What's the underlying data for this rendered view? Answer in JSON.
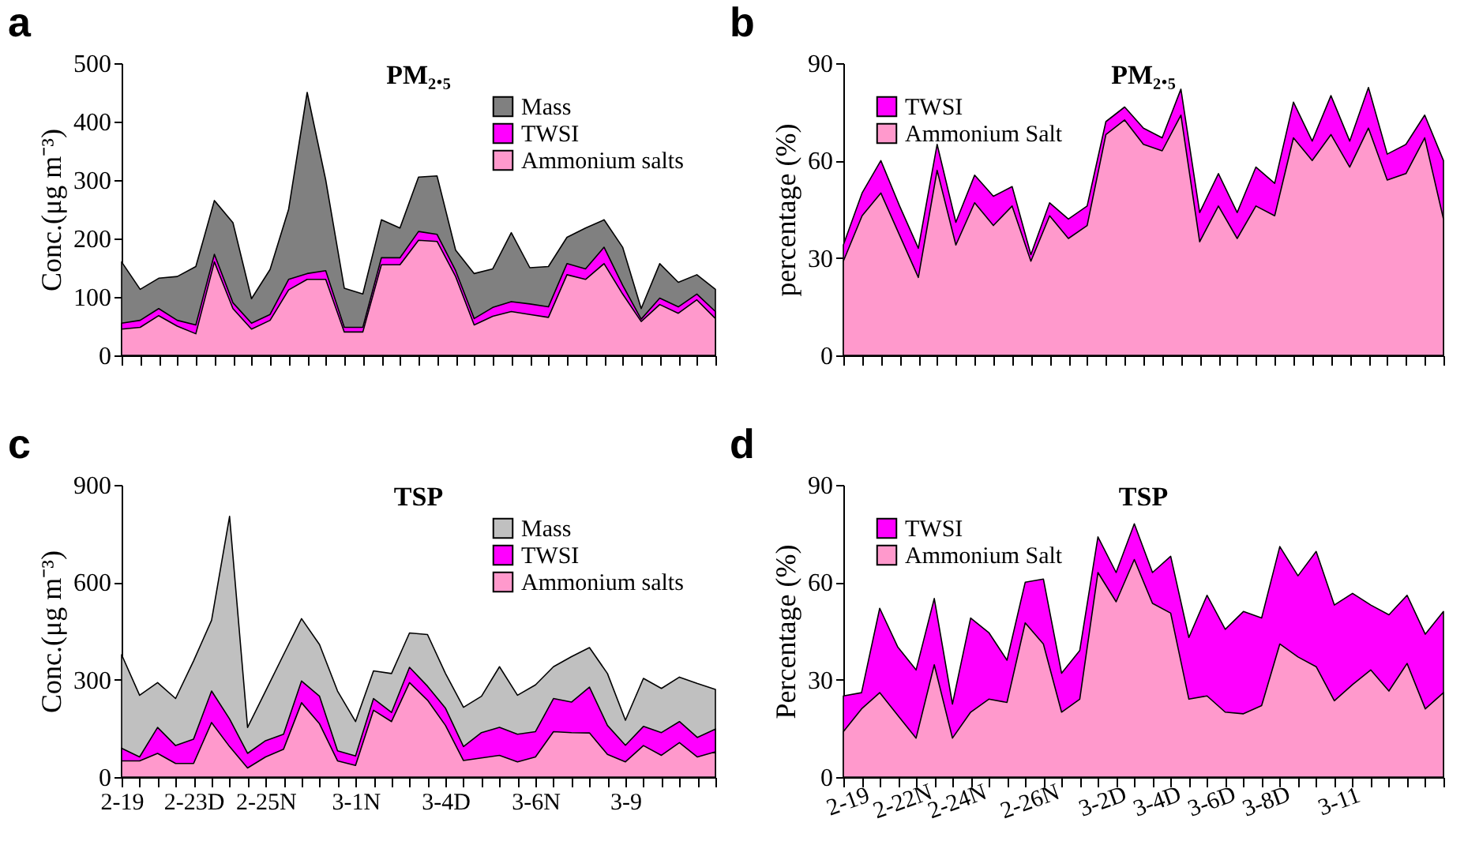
{
  "chart_data": [
    {
      "type": "area",
      "annotations": [
        "a"
      ],
      "title": "PM₂.₅",
      "ylabel": "Conc.(μg m⁻³)",
      "legend": "top right",
      "tick_labels": "y",
      "categories": [
        null,
        null,
        null,
        null,
        null,
        null,
        null,
        null,
        null,
        null,
        null,
        null,
        null,
        null,
        null,
        null,
        null,
        null,
        null,
        null,
        null,
        null,
        null,
        null,
        null,
        null,
        null,
        null,
        null,
        null,
        null,
        null,
        null
      ],
      "ylim": [
        0,
        500
      ],
      "yticks": [
        0,
        100,
        200,
        300,
        400,
        500
      ],
      "series": [
        {
          "name": "Mass",
          "color": "#808080",
          "values": [
            160,
            113,
            132,
            135,
            152,
            265,
            227,
            97,
            147,
            250,
            450,
            300,
            115,
            105,
            232,
            218,
            305,
            307,
            180,
            140,
            148,
            210,
            150,
            152,
            202,
            218,
            232,
            185,
            80,
            157,
            125,
            138,
            113
          ]
        },
        {
          "name": "TWSI",
          "color": "#ff00ff",
          "values": [
            55,
            60,
            80,
            60,
            52,
            173,
            90,
            55,
            70,
            130,
            140,
            145,
            48,
            48,
            167,
            167,
            212,
            207,
            145,
            63,
            82,
            92,
            88,
            83,
            157,
            148,
            185,
            120,
            62,
            98,
            83,
            105,
            75
          ]
        },
        {
          "name": "Ammonium salts",
          "color": "#ff99cc",
          "values": [
            45,
            48,
            68,
            50,
            37,
            160,
            80,
            45,
            60,
            112,
            130,
            130,
            40,
            40,
            155,
            155,
            197,
            195,
            135,
            52,
            67,
            75,
            70,
            65,
            138,
            130,
            157,
            105,
            58,
            87,
            72,
            95,
            63
          ]
        }
      ]
    },
    {
      "type": "area",
      "annotations": [
        "b"
      ],
      "title": "PM₂.₅",
      "ylabel": "percentage (%)",
      "legend": "top left",
      "tick_labels": "y",
      "categories": [
        null,
        null,
        null,
        null,
        null,
        null,
        null,
        null,
        null,
        null,
        null,
        null,
        null,
        null,
        null,
        null,
        null,
        null,
        null,
        null,
        null,
        null,
        null,
        null,
        null,
        null,
        null,
        null,
        null,
        null,
        null,
        null,
        null
      ],
      "ylim": [
        0,
        90
      ],
      "yticks": [
        0,
        30,
        60,
        90
      ],
      "series": [
        {
          "name": "TWSI",
          "color": "#ff00ff",
          "values": [
            34,
            50,
            60,
            46,
            33,
            65,
            41,
            55.5,
            49,
            52,
            31,
            47,
            42,
            46,
            72,
            76.5,
            70,
            67,
            82,
            44,
            56,
            44,
            58,
            53,
            78,
            66,
            80,
            66,
            82.5,
            62,
            65,
            74,
            60
          ]
        },
        {
          "name": "Ammonium Salt",
          "color": "#ff99cc",
          "values": [
            29,
            43,
            50,
            37,
            24,
            57,
            34,
            47,
            40,
            46,
            29,
            43,
            36,
            40,
            68,
            72.5,
            65,
            63,
            74,
            35,
            46,
            36,
            46,
            43,
            67,
            60,
            68,
            58,
            70,
            54,
            56,
            67,
            42
          ]
        }
      ]
    },
    {
      "type": "area",
      "annotations": [
        "c"
      ],
      "title": "TSP",
      "ylabel": "Conc.(μg m⁻³)",
      "legend": "top right",
      "categories": [
        "2-19",
        null,
        null,
        null,
        "2-23D",
        null,
        null,
        null,
        "2-25N",
        null,
        null,
        null,
        null,
        "3-1N",
        null,
        null,
        null,
        null,
        "3-4D",
        null,
        null,
        null,
        null,
        "3-6N",
        null,
        null,
        null,
        null,
        "3-9",
        null,
        null,
        null,
        null,
        null
      ],
      "ylim": [
        0,
        900
      ],
      "yticks": [
        0,
        300,
        600,
        900
      ],
      "series": [
        {
          "name": "Mass",
          "color": "#c0c0c0",
          "values": [
            377,
            252,
            291,
            242,
            358,
            483,
            803,
            153,
            265,
            377,
            488,
            408,
            265,
            171,
            327,
            319,
            444,
            439,
            319,
            215,
            249,
            340,
            252,
            284,
            340,
            371,
            399,
            319,
            175,
            304,
            273,
            308,
            288,
            270
          ]
        },
        {
          "name": "TWSI",
          "color": "#ff00ff",
          "values": [
            89,
            62,
            153,
            97,
            117,
            265,
            179,
            73,
            112,
            132,
            296,
            249,
            81,
            65,
            242,
            199,
            338,
            280,
            212,
            94,
            137,
            153,
            132,
            140,
            242,
            231,
            277,
            159,
            98,
            156,
            137,
            171,
            122,
            148
          ]
        },
        {
          "name": "Ammonium salts",
          "color": "#ff99cc",
          "values": [
            50,
            50,
            73,
            42,
            42,
            168,
            94,
            28,
            62,
            86,
            229,
            164,
            50,
            36,
            206,
            171,
            291,
            237,
            159,
            51,
            59,
            67,
            47,
            62,
            140,
            137,
            136,
            70,
            47,
            97,
            67,
            106,
            62,
            78
          ]
        }
      ]
    },
    {
      "type": "area",
      "annotations": [
        "d"
      ],
      "title": "TSP",
      "ylabel": "Percentage (%)",
      "legend": "top left",
      "categories": [
        "2-19",
        null,
        null,
        "2-22N",
        null,
        null,
        "2-24N",
        null,
        null,
        null,
        "2-26N",
        null,
        null,
        null,
        "3-2D",
        null,
        null,
        "3-4D",
        null,
        null,
        "3-6D",
        null,
        null,
        "3-8D",
        null,
        null,
        null,
        "3-11",
        null,
        null,
        null,
        null,
        null,
        null
      ],
      "ylim": [
        0,
        90
      ],
      "yticks": [
        0,
        30,
        60,
        90
      ],
      "series": [
        {
          "name": "TWSI",
          "color": "#ff00ff",
          "values": [
            25,
            26,
            52,
            40,
            33,
            55,
            22.5,
            49,
            44.5,
            36,
            60,
            61,
            32,
            39,
            74,
            63,
            78,
            63,
            68,
            43,
            56,
            45.5,
            51,
            49,
            71,
            62,
            69.5,
            53,
            56.6,
            53,
            50,
            56,
            44,
            51
          ]
        },
        {
          "name": "Ammonium Salt",
          "color": "#ff99cc",
          "values": [
            14,
            21,
            26,
            19,
            12,
            34.6,
            12,
            20,
            24,
            23,
            47.5,
            41,
            20,
            24,
            63,
            54,
            67,
            53.5,
            50.5,
            24,
            25,
            20,
            19.5,
            22,
            41,
            37,
            34,
            23.5,
            28.5,
            33,
            26.5,
            35,
            21,
            26
          ]
        }
      ]
    }
  ]
}
